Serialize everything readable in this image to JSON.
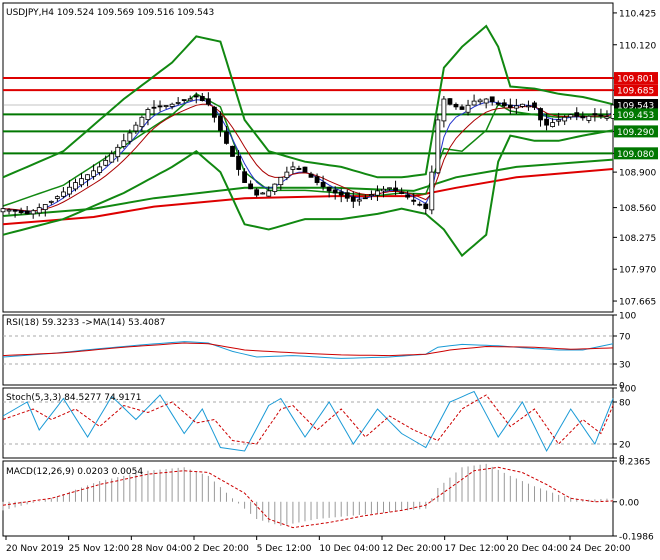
{
  "chart_data": [
    {
      "type": "candlestick",
      "panel": "price",
      "title": "USDJPY,H4  109.524 109.569 109.516 109.543",
      "ylim": [
        107.56,
        110.52
      ],
      "y_ticks": [
        "110.425",
        "110.120",
        "109.801",
        "109.685",
        "109.543",
        "109.453",
        "109.290",
        "109.080",
        "108.900",
        "108.560",
        "108.275",
        "107.970",
        "107.665"
      ],
      "x_ticks": [
        "20 Nov 2019",
        "25 Nov 12:00",
        "28 Nov 04:00",
        "2 Dec 20:00",
        "5 Dec 12:00",
        "10 Dec 04:00",
        "12 Dec 20:00",
        "17 Dec 12:00",
        "20 Dec 04:00",
        "24 Dec 20:00"
      ],
      "current_price": "109.543",
      "levels": [
        {
          "value": 109.801,
          "label": "109.801",
          "color": "#dd0000"
        },
        {
          "value": 109.685,
          "label": "109.685",
          "color": "#dd0000"
        },
        {
          "value": 109.453,
          "label": "109.453",
          "color": "#007700"
        },
        {
          "value": 109.29,
          "label": "109.290",
          "color": "#007700"
        },
        {
          "value": 109.08,
          "label": "109.080",
          "color": "#007700"
        }
      ],
      "price_points": [
        [
          0,
          108.55
        ],
        [
          4,
          108.5
        ],
        [
          8,
          108.62
        ],
        [
          12,
          108.8
        ],
        [
          16,
          108.95
        ],
        [
          20,
          109.2
        ],
        [
          24,
          109.5
        ],
        [
          28,
          109.55
        ],
        [
          32,
          109.62
        ],
        [
          34,
          109.55
        ],
        [
          36,
          109.3
        ],
        [
          38,
          109.05
        ],
        [
          40,
          108.8
        ],
        [
          42,
          108.68
        ],
        [
          44,
          108.72
        ],
        [
          46,
          108.85
        ],
        [
          48,
          108.95
        ],
        [
          50,
          108.9
        ],
        [
          52,
          108.8
        ],
        [
          54,
          108.72
        ],
        [
          56,
          108.68
        ],
        [
          58,
          108.62
        ],
        [
          60,
          108.65
        ],
        [
          62,
          108.72
        ],
        [
          64,
          108.75
        ],
        [
          66,
          108.7
        ],
        [
          68,
          108.62
        ],
        [
          70,
          108.55
        ],
        [
          71,
          108.9
        ],
        [
          72,
          109.4
        ],
        [
          73,
          109.6
        ],
        [
          74,
          109.55
        ],
        [
          76,
          109.5
        ],
        [
          78,
          109.58
        ],
        [
          80,
          109.6
        ],
        [
          82,
          109.55
        ],
        [
          84,
          109.52
        ],
        [
          86,
          109.55
        ],
        [
          88,
          109.52
        ],
        [
          89,
          109.4
        ],
        [
          90,
          109.35
        ],
        [
          92,
          109.4
        ],
        [
          94,
          109.45
        ],
        [
          96,
          109.42
        ],
        [
          98,
          109.45
        ],
        [
          100,
          109.43
        ],
        [
          101,
          109.543
        ]
      ],
      "bb_upper": [
        [
          0,
          108.85
        ],
        [
          10,
          109.1
        ],
        [
          20,
          109.6
        ],
        [
          28,
          109.95
        ],
        [
          32,
          110.2
        ],
        [
          36,
          110.15
        ],
        [
          40,
          109.4
        ],
        [
          44,
          109.1
        ],
        [
          50,
          109.0
        ],
        [
          56,
          108.95
        ],
        [
          62,
          108.85
        ],
        [
          66,
          108.85
        ],
        [
          70,
          108.88
        ],
        [
          73,
          109.9
        ],
        [
          76,
          110.1
        ],
        [
          80,
          110.3
        ],
        [
          82,
          110.1
        ],
        [
          84,
          109.72
        ],
        [
          88,
          109.7
        ],
        [
          92,
          109.65
        ],
        [
          96,
          109.62
        ],
        [
          101,
          109.55
        ]
      ],
      "bb_lower": [
        [
          0,
          108.3
        ],
        [
          10,
          108.45
        ],
        [
          20,
          108.7
        ],
        [
          28,
          108.95
        ],
        [
          32,
          109.1
        ],
        [
          36,
          108.9
        ],
        [
          40,
          108.4
        ],
        [
          44,
          108.35
        ],
        [
          50,
          108.45
        ],
        [
          56,
          108.45
        ],
        [
          62,
          108.5
        ],
        [
          66,
          108.55
        ],
        [
          70,
          108.5
        ],
        [
          73,
          108.35
        ],
        [
          76,
          108.1
        ],
        [
          80,
          108.3
        ],
        [
          82,
          109.0
        ],
        [
          84,
          109.25
        ],
        [
          88,
          109.2
        ],
        [
          92,
          109.2
        ],
        [
          96,
          109.25
        ],
        [
          101,
          109.3
        ]
      ],
      "sma_slow": [
        [
          0,
          108.48
        ],
        [
          15,
          108.55
        ],
        [
          25,
          108.65
        ],
        [
          40,
          108.75
        ],
        [
          55,
          108.75
        ],
        [
          68,
          108.72
        ],
        [
          75,
          108.85
        ],
        [
          85,
          108.95
        ],
        [
          101,
          109.02
        ]
      ],
      "sma_red": [
        [
          0,
          108.4
        ],
        [
          15,
          108.47
        ],
        [
          25,
          108.57
        ],
        [
          40,
          108.65
        ],
        [
          55,
          108.67
        ],
        [
          68,
          108.67
        ],
        [
          75,
          108.75
        ],
        [
          85,
          108.85
        ],
        [
          101,
          108.93
        ]
      ]
    },
    {
      "type": "line",
      "panel": "rsi",
      "title": "RSI(18) 59.3233  ->MA(14) 53.4087",
      "ylim": [
        0,
        100
      ],
      "y_ticks": [
        100,
        70,
        30,
        0
      ],
      "rsi_points": [
        [
          0,
          40
        ],
        [
          8,
          45
        ],
        [
          16,
          52
        ],
        [
          24,
          58
        ],
        [
          30,
          62
        ],
        [
          34,
          60
        ],
        [
          38,
          48
        ],
        [
          42,
          40
        ],
        [
          48,
          42
        ],
        [
          56,
          38
        ],
        [
          64,
          40
        ],
        [
          70,
          44
        ],
        [
          72,
          54
        ],
        [
          76,
          58
        ],
        [
          82,
          56
        ],
        [
          88,
          52
        ],
        [
          92,
          50
        ],
        [
          96,
          50
        ],
        [
          101,
          59
        ]
      ],
      "ma_points": [
        [
          0,
          42
        ],
        [
          10,
          46
        ],
        [
          20,
          54
        ],
        [
          30,
          60
        ],
        [
          34,
          59
        ],
        [
          40,
          50
        ],
        [
          48,
          46
        ],
        [
          56,
          43
        ],
        [
          64,
          42
        ],
        [
          70,
          44
        ],
        [
          74,
          50
        ],
        [
          80,
          55
        ],
        [
          88,
          54
        ],
        [
          94,
          51
        ],
        [
          101,
          53
        ]
      ]
    },
    {
      "type": "line",
      "panel": "stochastic",
      "title": "Stoch(5,3,3) 84.5277 74.9171",
      "ylim": [
        0,
        100
      ],
      "y_ticks": [
        100,
        80,
        20,
        0
      ],
      "k_points": [
        [
          0,
          60
        ],
        [
          4,
          80
        ],
        [
          6,
          40
        ],
        [
          10,
          85
        ],
        [
          14,
          30
        ],
        [
          18,
          88
        ],
        [
          22,
          55
        ],
        [
          26,
          90
        ],
        [
          30,
          35
        ],
        [
          33,
          70
        ],
        [
          36,
          15
        ],
        [
          40,
          10
        ],
        [
          44,
          75
        ],
        [
          46,
          85
        ],
        [
          50,
          30
        ],
        [
          54,
          80
        ],
        [
          58,
          20
        ],
        [
          62,
          70
        ],
        [
          66,
          35
        ],
        [
          70,
          15
        ],
        [
          74,
          80
        ],
        [
          78,
          95
        ],
        [
          82,
          30
        ],
        [
          86,
          80
        ],
        [
          90,
          10
        ],
        [
          94,
          70
        ],
        [
          98,
          20
        ],
        [
          101,
          85
        ]
      ],
      "d_points": [
        [
          0,
          55
        ],
        [
          5,
          70
        ],
        [
          8,
          55
        ],
        [
          12,
          70
        ],
        [
          16,
          45
        ],
        [
          20,
          75
        ],
        [
          24,
          65
        ],
        [
          28,
          80
        ],
        [
          32,
          50
        ],
        [
          35,
          55
        ],
        [
          38,
          25
        ],
        [
          42,
          20
        ],
        [
          46,
          70
        ],
        [
          48,
          75
        ],
        [
          52,
          40
        ],
        [
          56,
          70
        ],
        [
          60,
          30
        ],
        [
          64,
          60
        ],
        [
          68,
          40
        ],
        [
          72,
          25
        ],
        [
          76,
          70
        ],
        [
          80,
          90
        ],
        [
          84,
          45
        ],
        [
          88,
          70
        ],
        [
          92,
          20
        ],
        [
          96,
          55
        ],
        [
          99,
          35
        ],
        [
          101,
          75
        ]
      ]
    },
    {
      "type": "bar",
      "panel": "macd",
      "title": "MACD(12,26,9) 0.0203 0.0054",
      "ylim": [
        -0.1986,
        0.2365
      ],
      "y_ticks": [
        "0.2365",
        "0.00",
        "-0.1986"
      ],
      "hist_points": [
        [
          0,
          -0.05
        ],
        [
          8,
          0.02
        ],
        [
          16,
          0.12
        ],
        [
          24,
          0.18
        ],
        [
          30,
          0.2
        ],
        [
          34,
          0.15
        ],
        [
          38,
          0.02
        ],
        [
          42,
          -0.1
        ],
        [
          46,
          -0.14
        ],
        [
          52,
          -0.1
        ],
        [
          58,
          -0.08
        ],
        [
          64,
          -0.06
        ],
        [
          70,
          -0.04
        ],
        [
          72,
          0.08
        ],
        [
          76,
          0.2
        ],
        [
          80,
          0.22
        ],
        [
          84,
          0.15
        ],
        [
          88,
          0.09
        ],
        [
          92,
          0.04
        ],
        [
          96,
          0.01
        ],
        [
          101,
          0.02
        ]
      ],
      "signal_points": [
        [
          0,
          -0.02
        ],
        [
          8,
          0.02
        ],
        [
          16,
          0.1
        ],
        [
          24,
          0.16
        ],
        [
          30,
          0.18
        ],
        [
          34,
          0.17
        ],
        [
          40,
          0.05
        ],
        [
          44,
          -0.1
        ],
        [
          48,
          -0.15
        ],
        [
          54,
          -0.12
        ],
        [
          60,
          -0.08
        ],
        [
          66,
          -0.05
        ],
        [
          70,
          -0.02
        ],
        [
          74,
          0.08
        ],
        [
          78,
          0.18
        ],
        [
          82,
          0.2
        ],
        [
          86,
          0.17
        ],
        [
          90,
          0.1
        ],
        [
          94,
          0.02
        ],
        [
          98,
          0.0
        ],
        [
          101,
          0.005
        ]
      ]
    }
  ]
}
